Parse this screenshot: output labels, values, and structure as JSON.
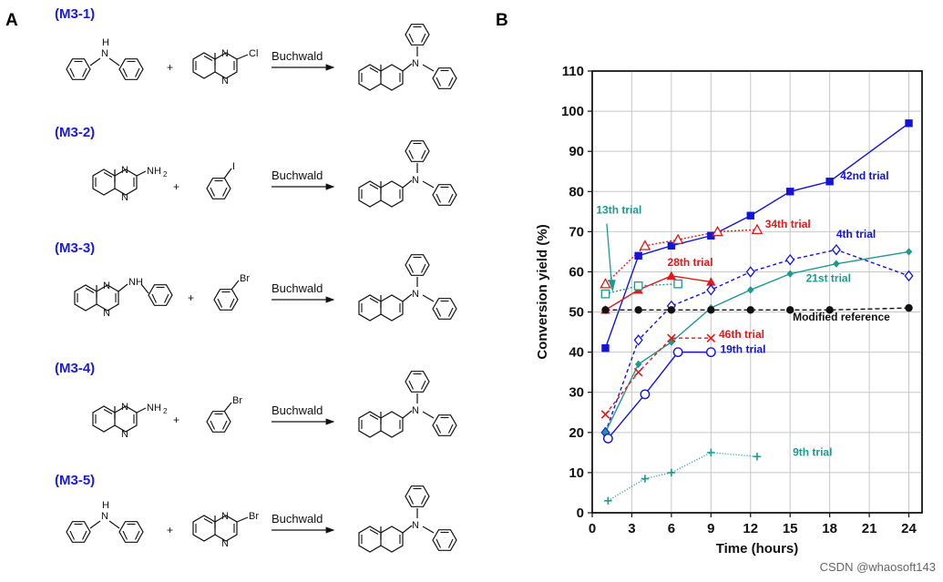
{
  "panels": {
    "a": "A",
    "b": "B"
  },
  "reactions": {
    "arrow_label": "Buchwald",
    "plus": "+",
    "labels": [
      "(M3-1)",
      "(M3-2)",
      "(M3-3)",
      "(M3-4)",
      "(M3-5)"
    ],
    "atoms": {
      "N": "N",
      "NH": "NH",
      "H": "H",
      "Cl": "Cl",
      "I": "I",
      "Br": "Br",
      "NH2": "NH",
      "sub2": "2"
    }
  },
  "watermark": "CSDN @whaosoft143",
  "chart_data": {
    "type": "line",
    "xlabel": "Time (hours)",
    "ylabel": "Conversion yield (%)",
    "xlim": [
      0,
      25
    ],
    "ylim": [
      0,
      110
    ],
    "xticks": [
      0,
      3,
      6,
      9,
      12,
      15,
      18,
      21,
      24
    ],
    "yticks": [
      0,
      10,
      20,
      30,
      40,
      50,
      60,
      70,
      80,
      90,
      100,
      110
    ],
    "grid": true,
    "series": [
      {
        "name": "42nd trial",
        "label": "42nd trial",
        "color": "#1414d8",
        "dash": "",
        "marker": "square-filled",
        "x": [
          1,
          3.5,
          6,
          9,
          12,
          15,
          18,
          24
        ],
        "y": [
          41,
          64,
          66.5,
          69,
          74,
          80,
          82.5,
          97
        ]
      },
      {
        "name": "34th trial",
        "label": "34th trial",
        "color": "#e11919",
        "dash": "2,2",
        "marker": "triangle-open",
        "x": [
          1,
          4,
          6.5,
          9.5,
          12.5
        ],
        "y": [
          57,
          66.5,
          68,
          70,
          70.5
        ]
      },
      {
        "name": "28th trial",
        "label": "28th trial",
        "color": "#e11919",
        "dash": "",
        "marker": "triangle-filled",
        "x": [
          1,
          3.5,
          6,
          9
        ],
        "y": [
          50.5,
          55.5,
          59,
          57.5
        ]
      },
      {
        "name": "13th trial",
        "label": "13th trial",
        "color": "#1e9990",
        "dash": "2,2",
        "marker": "square-open",
        "x": [
          1,
          3.5,
          6.5
        ],
        "y": [
          54.5,
          56.5,
          57
        ]
      },
      {
        "name": "4th trial",
        "label": "4th trial",
        "color": "#1414d8",
        "dash": "4,3",
        "marker": "diamond-open",
        "x": [
          1,
          3.5,
          6,
          9,
          12,
          15,
          18.5,
          24
        ],
        "y": [
          20,
          43,
          51.5,
          55.5,
          60,
          63,
          65.5,
          59
        ]
      },
      {
        "name": "21st trial",
        "label": "21st trial",
        "color": "#1e9990",
        "dash": "",
        "marker": "diamond-filled",
        "x": [
          1,
          3.5,
          6,
          9,
          12,
          15,
          18.5,
          24
        ],
        "y": [
          20,
          37,
          42.5,
          51,
          55.5,
          59.5,
          62,
          65
        ]
      },
      {
        "name": "Modified reference",
        "label": "Modified reference",
        "color": "#111111",
        "dash": "5,3",
        "marker": "circle-filled",
        "x": [
          1,
          3.5,
          6,
          9,
          12,
          15,
          18,
          24
        ],
        "y": [
          50.5,
          50.5,
          50.5,
          50.5,
          50.5,
          50.5,
          50.5,
          51
        ]
      },
      {
        "name": "46th trial",
        "label": "46th trial",
        "color": "#e11919",
        "dash": "4,3",
        "marker": "x",
        "x": [
          1,
          3.5,
          6,
          9
        ],
        "y": [
          24.5,
          35,
          43.5,
          43.5
        ]
      },
      {
        "name": "19th trial",
        "label": "19th trial",
        "color": "#1414d8",
        "dash": "",
        "marker": "circle-open",
        "x": [
          1.2,
          4,
          6.5,
          9
        ],
        "y": [
          18.5,
          29.5,
          40,
          40
        ]
      },
      {
        "name": "9th trial",
        "label": "9th trial",
        "color": "#1e9990",
        "dash": "1,2",
        "marker": "plus",
        "x": [
          1.2,
          4,
          6,
          9,
          12.5
        ],
        "y": [
          3,
          8.5,
          10,
          15,
          14
        ]
      }
    ]
  }
}
